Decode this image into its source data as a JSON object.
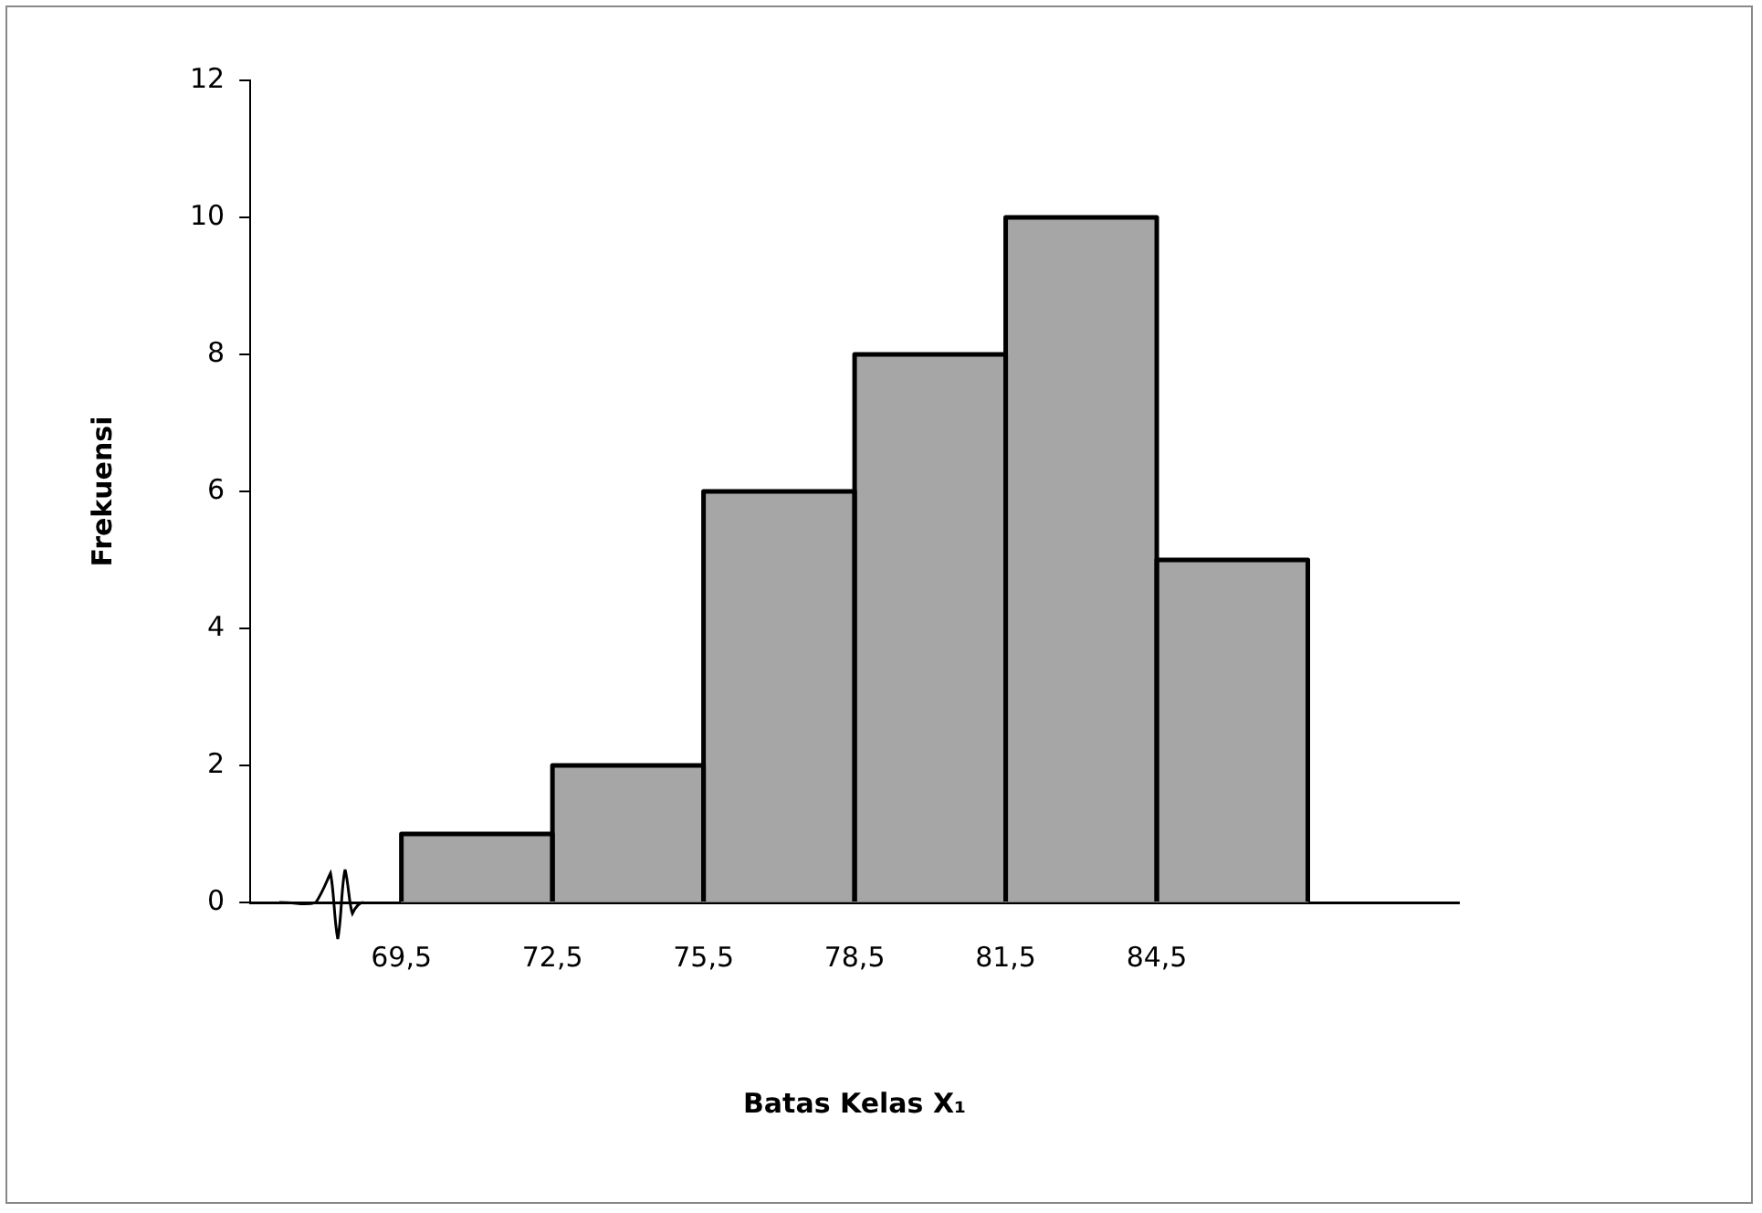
{
  "chart_data": {
    "type": "histogram",
    "xlabel": "Batas Kelas X₁",
    "ylabel": "Frekuensi",
    "bins": [
      69.5,
      72.5,
      75.5,
      78.5,
      81.5,
      84.5,
      87.5
    ],
    "values": [
      1,
      2,
      6,
      8,
      10,
      5
    ],
    "color": "#a6a6a6",
    "xlim": [
      66.5,
      90.5
    ],
    "xticks": [
      {
        "value": 69.5,
        "label": "69,5"
      },
      {
        "value": 72.5,
        "label": "72,5"
      },
      {
        "value": 75.5,
        "label": "75,5"
      },
      {
        "value": 78.5,
        "label": "78,5"
      },
      {
        "value": 81.5,
        "label": "81,5"
      },
      {
        "value": 84.5,
        "label": "84,5"
      }
    ],
    "ylim": [
      0,
      12
    ],
    "yticks": [
      0,
      2,
      4,
      6,
      8,
      10,
      12
    ],
    "grid": false,
    "legend": false
  }
}
